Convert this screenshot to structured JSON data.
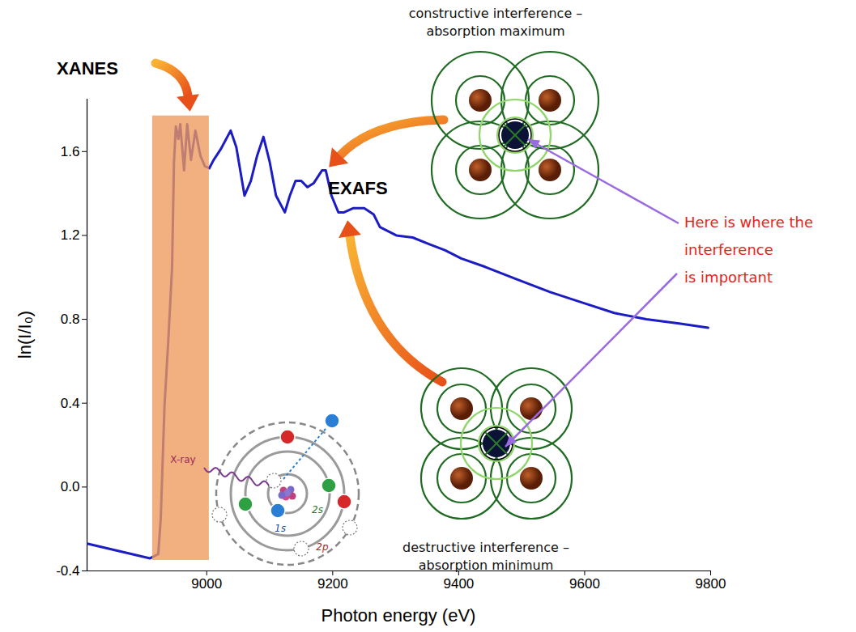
{
  "chart_data": {
    "type": "line",
    "xlabel": "Photon energy (eV)",
    "ylabel": "ln(I/I₀)",
    "color": "#1c1cc4",
    "x": [
      8810,
      8910,
      8923,
      8927,
      8933,
      8939,
      8945,
      8948,
      8951,
      8955,
      8958,
      8964,
      8969,
      8975,
      8982,
      8990,
      8997,
      9004,
      9011,
      9022,
      9038,
      9047,
      9060,
      9070,
      9080,
      9090,
      9100,
      9110,
      9124,
      9132,
      9141,
      9150,
      9160,
      9170,
      9183,
      9189,
      9198,
      9209,
      9218,
      9233,
      9250,
      9265,
      9275,
      9301,
      9327,
      9352,
      9378,
      9404,
      9442,
      9493,
      9545,
      9596,
      9647,
      9698,
      9750,
      9796
    ],
    "values": [
      -0.27,
      -0.34,
      -0.32,
      -0.15,
      0.39,
      0.7,
      1.05,
      1.55,
      1.72,
      1.66,
      1.73,
      1.51,
      1.73,
      1.56,
      1.7,
      1.58,
      1.53,
      1.52,
      1.56,
      1.61,
      1.7,
      1.62,
      1.39,
      1.46,
      1.58,
      1.67,
      1.55,
      1.39,
      1.31,
      1.39,
      1.46,
      1.46,
      1.43,
      1.45,
      1.51,
      1.51,
      1.39,
      1.31,
      1.31,
      1.33,
      1.33,
      1.3,
      1.24,
      1.2,
      1.19,
      1.16,
      1.13,
      1.09,
      1.05,
      0.99,
      0.93,
      0.88,
      0.83,
      0.8,
      0.78,
      0.76
    ],
    "xlim": [
      8810,
      9800
    ],
    "xticks": [
      9000,
      9200,
      9400,
      9600,
      9800
    ],
    "ylim": [
      -0.4,
      1.85
    ],
    "yticks": [
      -0.4,
      {
        "value": 0,
        "label": "0.0"
      },
      0.4,
      0.8,
      1.2,
      1.6
    ],
    "highlight": {
      "x": [
        8914,
        9004
      ],
      "y": [
        -0.35,
        1.77
      ]
    },
    "annotations": {
      "xanes": "XANES",
      "exafs": "EXAFS",
      "constructive": [
        "constructive interference –",
        "absorption maximum"
      ],
      "destructive": [
        "destructive interference –",
        "absorption minimum"
      ],
      "note": [
        "Here is where the",
        "interference",
        "is important"
      ],
      "atom": {
        "xray": "X-ray",
        "shells": [
          "1s",
          "2s",
          "2p"
        ]
      }
    }
  }
}
